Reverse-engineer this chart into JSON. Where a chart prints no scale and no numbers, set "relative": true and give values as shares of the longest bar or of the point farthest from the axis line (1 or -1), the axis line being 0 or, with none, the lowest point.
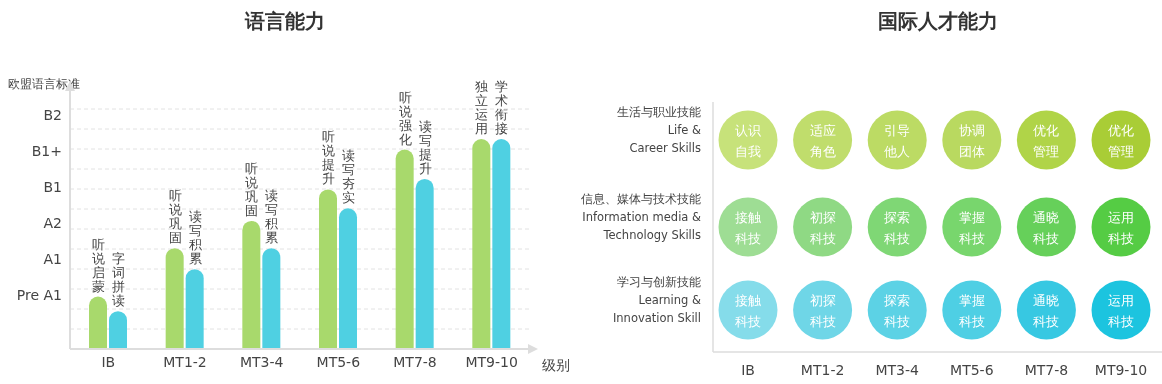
{
  "chart_data": [
    {
      "type": "bar",
      "title": "语言能力",
      "xlabel": "级别",
      "ylabel": "欧盟语言标准",
      "categories": [
        "IB",
        "MT1-2",
        "MT3-4",
        "MT5-6",
        "MT7-8",
        "MT9-10"
      ],
      "y_categories": [
        "B2",
        "B1+",
        "B1",
        "A2",
        "A1",
        "Pre A1"
      ],
      "relative": true,
      "series": [
        {
          "color": "#a8d96c",
          "values": [
            0.25,
            0.48,
            0.61,
            0.76,
            0.95,
            1
          ]
        },
        {
          "color": "#4fd0e2",
          "values": [
            0.18,
            0.38,
            0.48,
            0.67,
            0.81,
            1
          ]
        }
      ],
      "grid": "y",
      "annotations": [
        "听说启蒙",
        "字词拼读",
        "听说巩固",
        "读写积累",
        "听说巩固",
        "读写积累",
        "听说提升",
        "读写夯实",
        "听说强化",
        "读写提升",
        "独立运用",
        "学术衔接"
      ]
    },
    {
      "type": "other",
      "title": "国际人才能力",
      "categories": [
        "IB",
        "MT1-2",
        "MT3-4",
        "MT5-6",
        "MT7-8",
        "MT9-10"
      ],
      "y_categories": [
        "生活与职业技能\nLife &\nCareer Skills",
        "信息、媒体与技术技能\nInformation media &\nTechnology Skills",
        "学习与创新技能\nLearning &\nInnovation Skill"
      ],
      "cell_labels": [
        [
          "认识自我",
          "适应角色",
          "引导他人",
          "协调团体",
          "优化管理",
          "优化管理"
        ],
        [
          "接触科技",
          "初探科技",
          "探索科技",
          "掌握科技",
          "通晓科技",
          "运用科技"
        ],
        [
          "接触科技",
          "初探科技",
          "探索科技",
          "掌握科技",
          "通晓科技",
          "运用科技"
        ]
      ],
      "colors": [
        [
          "#c7e27a",
          "#c0dd6c",
          "#bcdb64",
          "#b9d960",
          "#b0d448",
          "#a9cd36"
        ],
        [
          "#9edd94",
          "#8fd984",
          "#7fd775",
          "#78d66d",
          "#66d05a",
          "#55cc44"
        ],
        [
          "#85dcea",
          "#6fd6e7",
          "#5cd2e5",
          "#4ecfe4",
          "#37c8e2",
          "#1cc4df"
        ]
      ]
    }
  ]
}
